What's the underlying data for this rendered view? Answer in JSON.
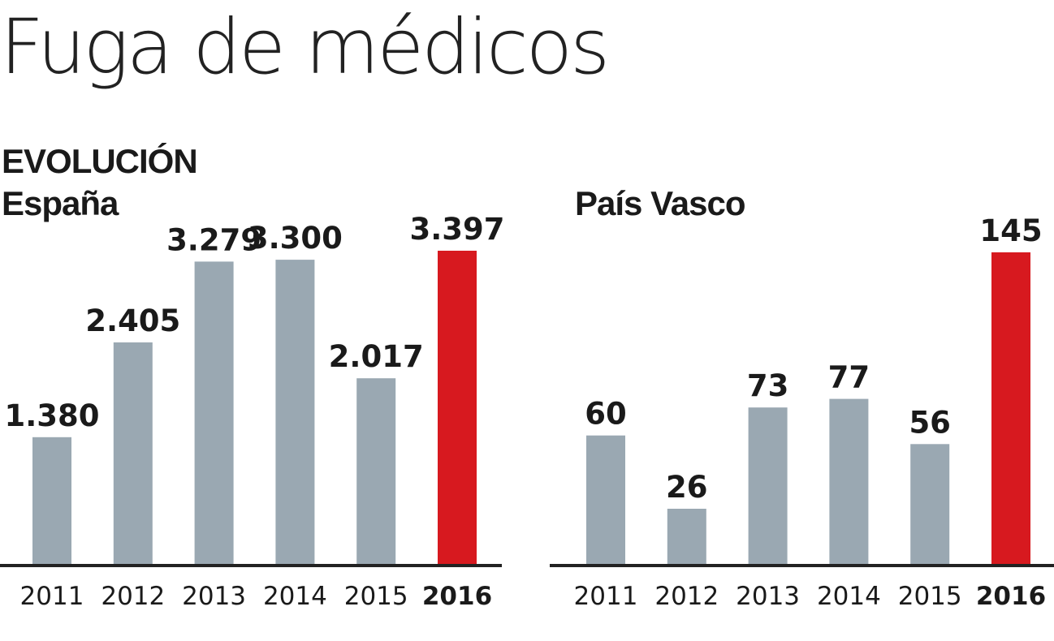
{
  "title": "Fuga de médicos",
  "section_label": "EVOLUCIÓN",
  "colors": {
    "bar": "#9aa8b2",
    "highlight": "#d7191f",
    "axis": "#222222",
    "text": "#1a1a1a"
  },
  "chart_data": [
    {
      "type": "bar",
      "title": "España",
      "categories": [
        "2011",
        "2012",
        "2013",
        "2014",
        "2015",
        "2016"
      ],
      "values": [
        1380,
        2405,
        3279,
        3300,
        2017,
        3397
      ],
      "value_labels": [
        "1.380",
        "2.405",
        "3.279",
        "3.300",
        "2.017",
        "3.397"
      ],
      "highlight_category": "2016",
      "xlabel": "",
      "ylabel": "",
      "ylim": [
        0,
        3397
      ],
      "grid": false
    },
    {
      "type": "bar",
      "title": "País Vasco",
      "categories": [
        "2011",
        "2012",
        "2013",
        "2014",
        "2015",
        "2016"
      ],
      "values": [
        60,
        26,
        73,
        77,
        56,
        145
      ],
      "value_labels": [
        "60",
        "26",
        "73",
        "77",
        "56",
        "145"
      ],
      "highlight_category": "2016",
      "xlabel": "",
      "ylabel": "",
      "ylim": [
        0,
        145
      ],
      "grid": false
    }
  ]
}
